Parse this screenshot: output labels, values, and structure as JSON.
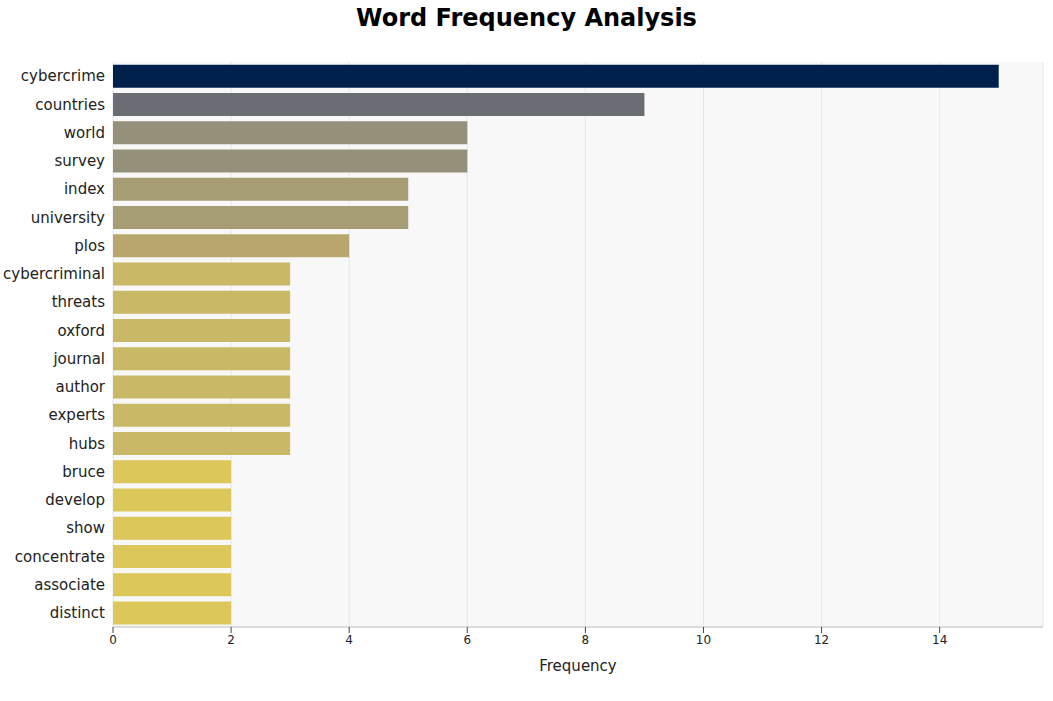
{
  "chart_data": {
    "type": "bar",
    "title": "Word Frequency Analysis",
    "x_label": "Frequency",
    "orientation": "horizontal",
    "categories": [
      "cybercrime",
      "countries",
      "world",
      "survey",
      "index",
      "university",
      "plos",
      "cybercriminal",
      "threats",
      "oxford",
      "journal",
      "author",
      "experts",
      "hubs",
      "bruce",
      "develop",
      "show",
      "concentrate",
      "associate",
      "distinct"
    ],
    "values": [
      15,
      9,
      6,
      6,
      5,
      5,
      4,
      3,
      3,
      3,
      3,
      3,
      3,
      3,
      2,
      2,
      2,
      2,
      2,
      2
    ],
    "colors": [
      "#00204c",
      "#6a6d74",
      "#959079",
      "#959079",
      "#a69d75",
      "#a69d75",
      "#b8a66d",
      "#c9b865",
      "#c9b865",
      "#c9b865",
      "#c9b865",
      "#c9b865",
      "#c9b865",
      "#c9b865",
      "#dcc75a",
      "#dcc75a",
      "#dcc75a",
      "#dcc75a",
      "#dcc75a",
      "#dcc75a"
    ],
    "xlim": [
      0,
      15.75
    ],
    "xticks": [
      0,
      2,
      4,
      6,
      8,
      10,
      12,
      14
    ],
    "grid": true
  }
}
